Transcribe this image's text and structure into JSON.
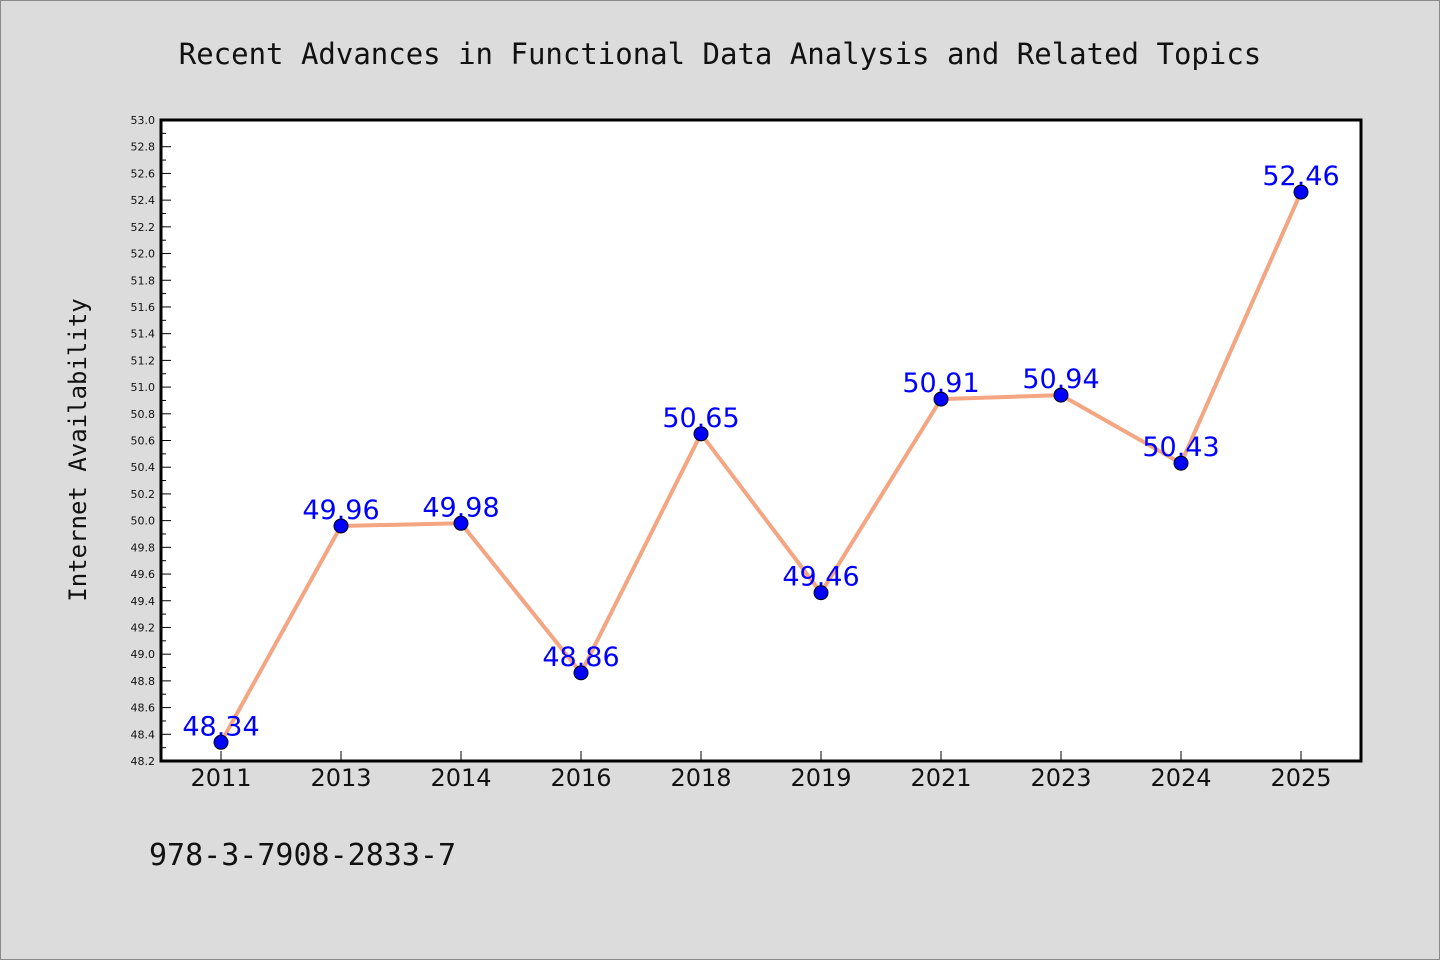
{
  "colors": {
    "background": "#dcdcdc",
    "plot_background": "#ffffff",
    "line": "#f4a582",
    "marker": "#0000ff",
    "data_label": "#0000ff",
    "text": "#111111"
  },
  "footer_text": "978-3-7908-2833-7",
  "chart_data": {
    "type": "line",
    "title": "Recent Advances in Functional Data Analysis and Related Topics",
    "xlabel": "",
    "ylabel": "Internet Availability",
    "categories": [
      "2011",
      "2013",
      "2014",
      "2016",
      "2018",
      "2019",
      "2021",
      "2023",
      "2024",
      "2025"
    ],
    "series": [
      {
        "values": [
          48.34,
          49.96,
          49.98,
          48.86,
          50.65,
          49.46,
          50.91,
          50.94,
          50.43,
          52.46
        ],
        "labels": [
          "48.34",
          "49.96",
          "49.98",
          "48.86",
          "50.65",
          "49.46",
          "50.91",
          "50.94",
          "50.43",
          "52.46"
        ]
      }
    ],
    "ylim": [
      48.2,
      53.0
    ],
    "yticks": [
      "48.2",
      "48.4",
      "48.6",
      "48.8",
      "49.0",
      "49.2",
      "49.4",
      "49.6",
      "49.8",
      "50.0",
      "50.2",
      "50.4",
      "50.6",
      "50.8",
      "51.0",
      "51.2",
      "51.4",
      "51.6",
      "51.8",
      "52.0",
      "52.2",
      "52.4",
      "52.6",
      "52.8",
      "53.0"
    ],
    "grid": false,
    "legend": "none"
  }
}
